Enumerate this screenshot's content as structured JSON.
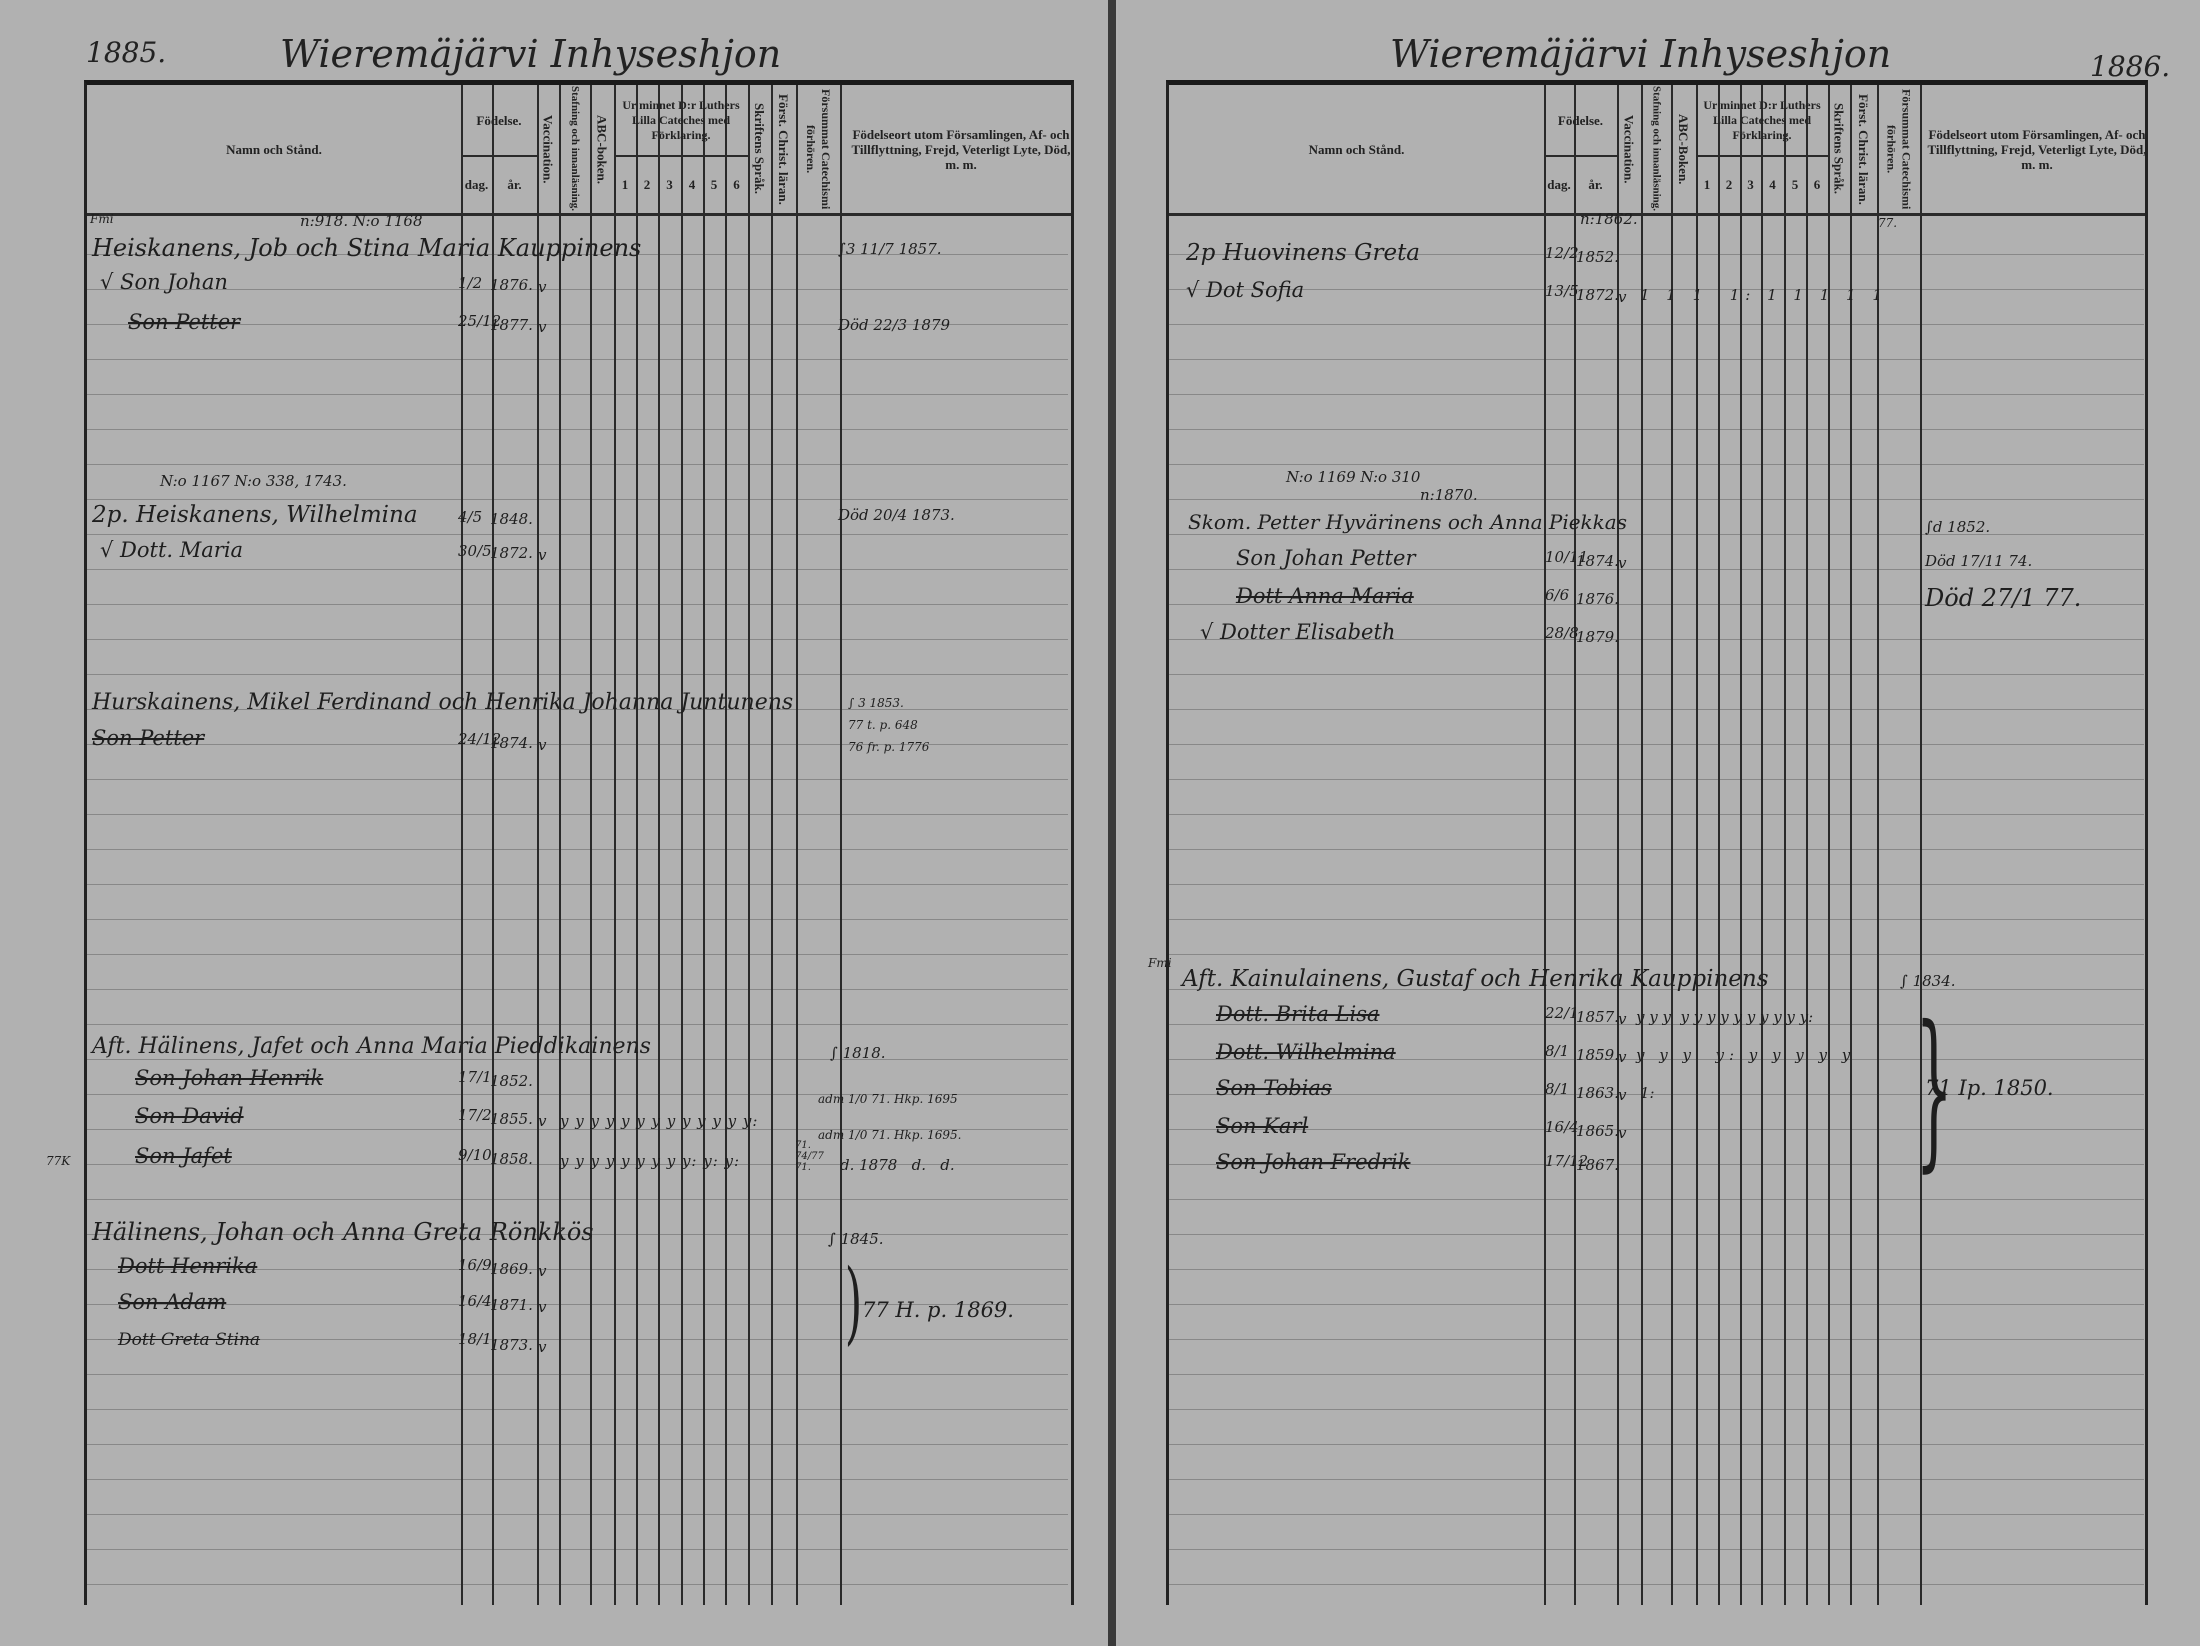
{
  "header": {
    "left_year": "1885.",
    "left_title": "Wieremäjärvi Inhyseshjon",
    "right_year": "1886.",
    "right_title": "Wieremäjärvi Inhyseshjon"
  },
  "columns": {
    "name": "Namn och Stånd.",
    "birth": "Födelse.",
    "day": "dag.",
    "year": "år.",
    "vaccination": "Vaccination.",
    "reading": "Stafning och innanläsning.",
    "abc_left": "ABC-boken.",
    "abc_right": "ABC-Boken.",
    "catechism": "Ur minnet D:r Luthers Lilla Cateches med Förklaring.",
    "cat_nums": [
      "1",
      "2",
      "3",
      "4",
      "5",
      "6"
    ],
    "scripture": "Skriftens Språk.",
    "christian": "Först. Christ. läran.",
    "missed": "Försummat Catechismi förhören.",
    "remarks": "Födelseort utom Församlingen, Af- och Tillflyttning, Frejd, Veterligt Lyte, Död, m. m."
  },
  "left": {
    "h0": {
      "margin": "Fmi",
      "ref": "n:918. N:o 1168",
      "head": "Heiskanens, Job och Stina Maria Kauppinens",
      "note": "∫3 11/7 1857.",
      "m0": {
        "name": "√ Son Johan",
        "day": "1/2",
        "year": "1876.",
        "vacc": "v"
      },
      "m1": {
        "name": "Son Petter",
        "day": "25/12",
        "year": "1877.",
        "vacc": "v",
        "note": "Död 22/3 1879"
      }
    },
    "h1": {
      "ref": "N:o 1167 N:o 338, 1743.",
      "head": "2p. Heiskanens, Wilhelmina",
      "day": "4/5",
      "year": "1848.",
      "note": "Död 20/4 1873.",
      "m0": {
        "name": "√ Dott. Maria",
        "day": "30/5",
        "year": "1872.",
        "vacc": "v"
      }
    },
    "h2": {
      "head": "Hurskainens, Mikel Ferdinand och Henrika Johanna Juntunens",
      "note1": "∫ 3 1853.",
      "note2": "77 t. p. 648",
      "note3": "76 fr. p. 1776",
      "m0": {
        "name": "Son Petter",
        "day": "24/12",
        "year": "1874.",
        "vacc": "v"
      }
    },
    "h3": {
      "margin": "77K",
      "head": "Aft. Hälinens, Jafet och Anna Maria Pieddikainens",
      "note": "∫ 1818.",
      "m0": {
        "name": "Son Johan Henrik",
        "day": "17/1",
        "year": "1852.",
        "note": "adm 1/0 71. Hkp. 1695"
      },
      "m1": {
        "name": "Son David",
        "day": "17/2",
        "year": "1855.",
        "vacc": "v",
        "marks": "y y y  y y y y y y y y y y:",
        "note": "adm 1/0 71. Hkp. 1695."
      },
      "m2": {
        "name": "Son Jafet",
        "day": "9/10",
        "year": "1858.",
        "marks": "y y y  y y y y y y: y: y:",
        "missed": "71. 74/77 71.",
        "note": "d. 1878   d.   d."
      }
    },
    "h4": {
      "head": "Hälinens, Johan och Anna Greta Rönkkös",
      "note": "∫ 1845.",
      "bracket_note": "77 H. p. 1869.",
      "m0": {
        "name": "Dott Henrika",
        "day": "16/9",
        "year": "1869.",
        "vacc": "v"
      },
      "m1": {
        "name": "Son Adam",
        "day": "16/4",
        "year": "1871.",
        "vacc": "v"
      },
      "m2": {
        "name": "Dott Greta Stina",
        "day": "18/1",
        "year": "1873.",
        "vacc": "v"
      }
    }
  },
  "right": {
    "h0": {
      "ref": "n:1862.",
      "head": "2p Huovinens Greta",
      "day": "12/2",
      "year": "1852.",
      "missed": "77.",
      "m0": {
        "name": "√ Dot Sofia",
        "day": "13/5",
        "year": "1872.",
        "vacc": "v",
        "marks": "1 1 1  1: 1 1 1 1 1"
      }
    },
    "h1": {
      "ref": "N:o 1169 N:o 310",
      "ref2": "n:1870.",
      "head": "Skom. Petter Hyvärinens och Anna Piekkas",
      "note": "∫d 1852.",
      "m0": {
        "name": "Son Johan Petter",
        "day": "10/11",
        "year": "1874.",
        "vacc": "v",
        "note": "Död 17/11 74."
      },
      "m1": {
        "name": "Dott Anna Maria",
        "day": "6/6",
        "year": "1876.",
        "note": "Död 27/1 77."
      },
      "m2": {
        "name": "√ Dotter Elisabeth",
        "day": "28/8",
        "year": "1879."
      }
    },
    "h2": {
      "margin": "Fmi",
      "head": "Aft. Kainulainens, Gustaf och Henrika Kauppinens",
      "note": "∫ 1834.",
      "bracket_note": "71 Ip. 1850.",
      "m0": {
        "name": "Dott. Brita Lisa",
        "day": "22/1",
        "year": "1857.",
        "vacc": "v",
        "marks": "y y y  y y y y y y y y y y:"
      },
      "m1": {
        "name": "Dott. Wilhelmina",
        "day": "8/1",
        "year": "1859.",
        "vacc": "v",
        "marks": "y y y  y: y y y y y"
      },
      "m2": {
        "name": "Son Tobias",
        "day": "8/1",
        "year": "1863.",
        "vacc": "v",
        "marks": "1:"
      },
      "m3": {
        "name": "Son Karl",
        "day": "16/4",
        "year": "1865.",
        "vacc": "v"
      },
      "m4": {
        "name": "Son Johan Fredrik",
        "day": "17/12",
        "year": "1867."
      }
    }
  }
}
